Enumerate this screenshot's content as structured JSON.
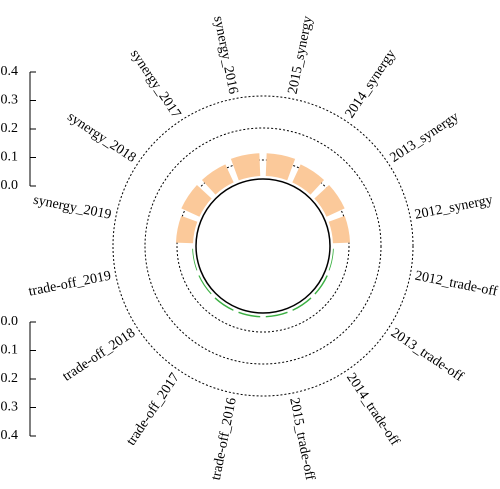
{
  "chart_data": {
    "type": "radial_bar",
    "synergy": {
      "categories": [
        "synergy_2019",
        "synergy_2018",
        "synergy_2017",
        "synergy_2016",
        "2015_synergy",
        "2014_synergy",
        "2013_synergy",
        "2012_synergy"
      ],
      "values": [
        0.06,
        0.07,
        0.07,
        0.08,
        0.08,
        0.07,
        0.07,
        0.06
      ],
      "color": "#fbc99a",
      "ylim": [
        0,
        0.4
      ],
      "yticks": [
        {
          "value": 0,
          "label": "0.0"
        },
        0.1,
        0.2,
        0.3,
        0.4
      ]
    },
    "trade_off": {
      "categories": [
        "2012_trade-off",
        "2013_trade-off",
        "2014_trade-off",
        "2015_trade-off",
        "trade-off_2016",
        "trade-off_2017",
        "trade-off_2018",
        "trade-off_2019"
      ],
      "values": [
        0.003,
        0.005,
        0.005,
        0.005,
        0.005,
        0.005,
        0.004,
        0.003
      ],
      "color": "#3cb043",
      "ylim": [
        0,
        0.4
      ],
      "yticks": [
        {
          "value": 0,
          "label": "0.0"
        },
        0.1,
        0.2,
        0.3,
        0.4
      ]
    }
  }
}
